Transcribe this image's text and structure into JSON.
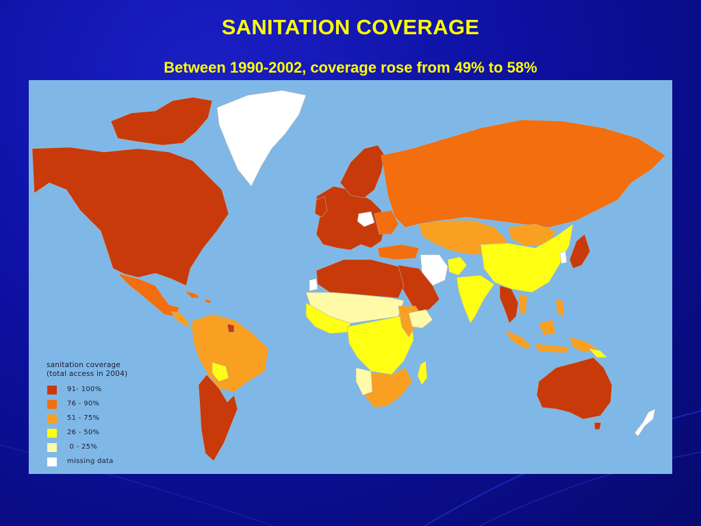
{
  "slide": {
    "title": "SANITATION COVERAGE",
    "subtitle": "Between 1990-2002, coverage rose from 49% to 58%"
  },
  "legend": {
    "title_line1": "sanitation coverage",
    "title_line2": "(total access in 2004)",
    "items": [
      {
        "label": "91- 100%",
        "color": "#c83a0a"
      },
      {
        "label": "76 - 90%",
        "color": "#f26e0e"
      },
      {
        "label": "51 - 75%",
        "color": "#f9a023"
      },
      {
        "label": "26 - 50%",
        "color": "#ffff14"
      },
      {
        "label": " 0 - 25%",
        "color": "#fffaa8"
      },
      {
        "label": "missing data",
        "color": "#ffffff"
      }
    ]
  },
  "colors": {
    "background": "#0d10a0",
    "title": "#ffff00",
    "ocean": "#7fb8e6"
  }
}
